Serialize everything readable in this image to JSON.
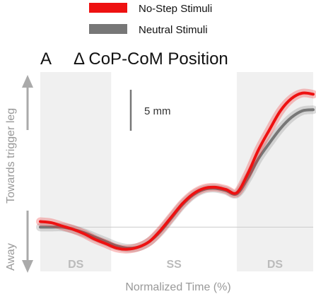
{
  "legend": {
    "items": [
      {
        "label": "No-Step Stimuli",
        "color": "#ee1111"
      },
      {
        "label": "Neutral Stimuli",
        "color": "#777777"
      }
    ]
  },
  "panel": {
    "letter": "A",
    "title": "Δ CoP-CoM Position"
  },
  "scalebar": {
    "label": "5 mm",
    "value_mm": 5
  },
  "chart_data": {
    "type": "line",
    "title": "Δ CoP-CoM Position",
    "xlabel": "Normalized Time (%)",
    "ylabel_top": "Towards trigger leg",
    "ylabel_bottom": "Away",
    "xlim": [
      0,
      100
    ],
    "ylim": [
      -4,
      14
    ],
    "grid": false,
    "legend_position": "top",
    "phases": [
      {
        "label": "DS",
        "start": 0,
        "end": 26
      },
      {
        "label": "SS",
        "start": 26,
        "end": 72
      },
      {
        "label": "DS",
        "start": 72,
        "end": 100
      }
    ],
    "x": [
      0,
      4,
      8,
      12,
      16,
      20,
      24,
      28,
      32,
      36,
      40,
      44,
      48,
      52,
      56,
      60,
      64,
      68,
      72,
      76,
      80,
      84,
      88,
      92,
      96,
      100
    ],
    "series": [
      {
        "name": "No-Step Stimuli",
        "color": "#ee1111",
        "values": [
          0.5,
          0.4,
          0.1,
          -0.2,
          -0.6,
          -1.1,
          -1.5,
          -1.9,
          -2.0,
          -1.8,
          -1.3,
          -0.3,
          0.9,
          2.1,
          3.0,
          3.5,
          3.6,
          3.4,
          3.1,
          4.8,
          7.0,
          8.8,
          10.5,
          11.6,
          12.1,
          12.0
        ]
      },
      {
        "name": "Neutral Stimuli",
        "color": "#777777",
        "values": [
          0.0,
          0.0,
          0.0,
          -0.2,
          -0.5,
          -0.9,
          -1.3,
          -1.7,
          -1.9,
          -1.8,
          -1.3,
          -0.4,
          0.8,
          2.0,
          2.9,
          3.4,
          3.5,
          3.3,
          3.0,
          4.4,
          6.2,
          7.6,
          8.9,
          9.9,
          10.5,
          10.6
        ]
      }
    ],
    "reference_line": 0
  }
}
